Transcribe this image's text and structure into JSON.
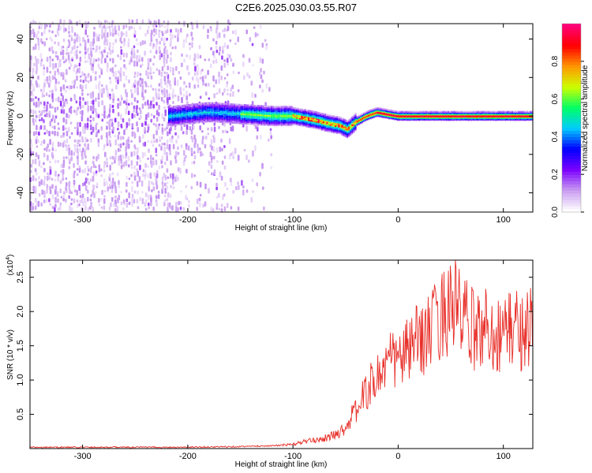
{
  "title": "C2E6.2025.030.03.55.R07",
  "chart_data": [
    {
      "type": "heatmap",
      "xlabel": "Height of straight line (km)",
      "ylabel": "Frequency (Hz)",
      "xlim": [
        -350,
        128
      ],
      "ylim": [
        -50,
        48
      ],
      "xticks": [
        -300,
        -200,
        -100,
        0,
        100
      ],
      "yticks": [
        -40,
        -20,
        0,
        20,
        40
      ],
      "colorbar": {
        "label": "Normalized spectral amplitude",
        "ticks": [
          "0.0",
          "0.2",
          "0.4",
          "0.6",
          "0.8"
        ],
        "range": [
          0,
          1
        ],
        "colors": [
          "#ffffff",
          "#c89bf0",
          "#7b00ff",
          "#0000ff",
          "#00ccff",
          "#00ff66",
          "#ccff00",
          "#ff9900",
          "#ff0000",
          "#ff0077"
        ]
      },
      "ridge": {
        "x": [
          -215,
          -180,
          -150,
          -120,
          -100,
          -80,
          -65,
          -55,
          -48,
          -40,
          -30,
          -20,
          -10,
          0,
          20,
          50,
          100,
          128
        ],
        "frequency": [
          0,
          2,
          1,
          0,
          0,
          -2,
          -4,
          -5,
          -7,
          -3,
          0,
          2,
          1,
          0,
          0,
          0,
          0,
          0
        ]
      }
    },
    {
      "type": "line",
      "xlabel": "Height of straight line (km)",
      "ylabel": "SNR (10 * v/v)",
      "y_multiplier": "(x10",
      "y_multiplier_exp": "4",
      "xlim": [
        -350,
        128
      ],
      "ylim": [
        0,
        2.75
      ],
      "xticks": [
        -300,
        -200,
        -100,
        0,
        100
      ],
      "yticks": [
        "0.5",
        "1.0",
        "1.5",
        "2.0",
        "2.5"
      ],
      "series": [
        {
          "color": "#e8302a",
          "x": [
            -350,
            -300,
            -250,
            -200,
            -150,
            -120,
            -100,
            -90,
            -80,
            -70,
            -60,
            -50,
            -45,
            -40,
            -35,
            -30,
            -25,
            -20,
            -15,
            -10,
            -5,
            0,
            5,
            10,
            15,
            20,
            25,
            30,
            35,
            40,
            45,
            50,
            55,
            60,
            65,
            70,
            75,
            80,
            85,
            90,
            95,
            100,
            105,
            110,
            115,
            120,
            125
          ],
          "y": [
            0.02,
            0.02,
            0.02,
            0.02,
            0.03,
            0.04,
            0.06,
            0.1,
            0.12,
            0.15,
            0.2,
            0.3,
            0.45,
            0.55,
            0.7,
            0.85,
            0.95,
            1.05,
            1.15,
            1.25,
            1.3,
            1.3,
            1.35,
            1.45,
            1.5,
            1.6,
            1.65,
            1.7,
            1.8,
            1.95,
            2.0,
            2.15,
            2.1,
            1.9,
            1.85,
            1.75,
            1.7,
            1.75,
            1.8,
            1.7,
            1.65,
            1.7,
            1.75,
            1.8,
            1.7,
            1.75,
            1.8
          ]
        }
      ]
    }
  ]
}
